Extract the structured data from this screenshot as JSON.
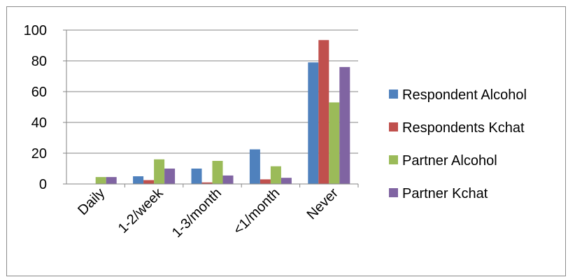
{
  "chart_data": {
    "type": "bar",
    "categories": [
      "Daily",
      "1-2/week",
      "1-3/month",
      "<1/month",
      "Never"
    ],
    "series": [
      {
        "name": "Respondent Alcohol",
        "color": "#4f81bd",
        "values": [
          0,
          5,
          10,
          22.5,
          79
        ]
      },
      {
        "name": "Respondents Kchat",
        "color": "#c0504d",
        "values": [
          0,
          2.5,
          1,
          3,
          93.5
        ]
      },
      {
        "name": "Partner Alcohol",
        "color": "#9bbb59",
        "values": [
          4.5,
          16,
          15,
          11.5,
          53
        ]
      },
      {
        "name": "Partner Kchat",
        "color": "#8064a2",
        "values": [
          4.5,
          10,
          5.5,
          4,
          76
        ]
      }
    ],
    "ylim": [
      0,
      100
    ],
    "yticks": [
      0,
      20,
      40,
      60,
      80,
      100
    ],
    "grid": true,
    "legend_position": "right",
    "title": "",
    "xlabel": "",
    "ylabel": ""
  }
}
